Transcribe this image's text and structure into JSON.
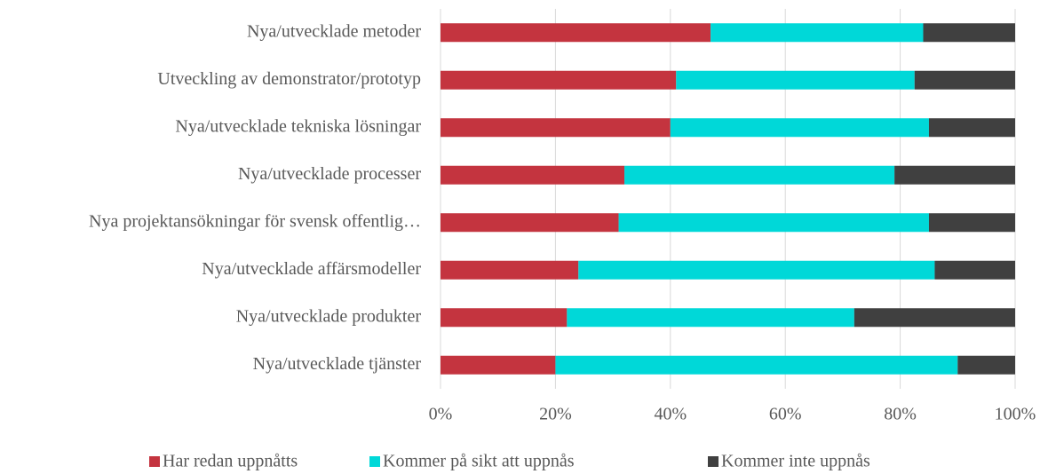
{
  "chart_data": {
    "type": "stacked_bar_horizontal",
    "categories": [
      "Nya/utvecklade metoder",
      "Utveckling av demonstrator/prototyp",
      "Nya/utvecklade tekniska lösningar",
      "Nya/utvecklade processer",
      "Nya projektansökningar för svensk offentlig…",
      "Nya/utvecklade affärsmodeller",
      "Nya/utvecklade produkter",
      "Nya/utvecklade tjänster"
    ],
    "series": [
      {
        "name": "Har redan uppnåtts",
        "color": "#c4343f",
        "values": [
          47,
          41,
          40,
          32,
          31,
          24,
          22,
          20
        ]
      },
      {
        "name": "Kommer på sikt att uppnås",
        "color": "#00d8d8",
        "values": [
          37,
          41.5,
          45,
          47,
          54,
          62,
          50,
          70
        ]
      },
      {
        "name": "Kommer inte uppnås",
        "color": "#404040",
        "values": [
          16,
          17.5,
          15,
          21,
          15,
          14,
          28,
          10
        ]
      }
    ],
    "xlim": [
      0,
      100
    ],
    "xticks": [
      {
        "value": 0,
        "label": "0%"
      },
      {
        "value": 20,
        "label": "20%"
      },
      {
        "value": 40,
        "label": "40%"
      },
      {
        "value": 60,
        "label": "60%"
      },
      {
        "value": 80,
        "label": "80%"
      },
      {
        "value": 100,
        "label": "100%"
      }
    ],
    "grid": true,
    "legend": "bottom"
  }
}
